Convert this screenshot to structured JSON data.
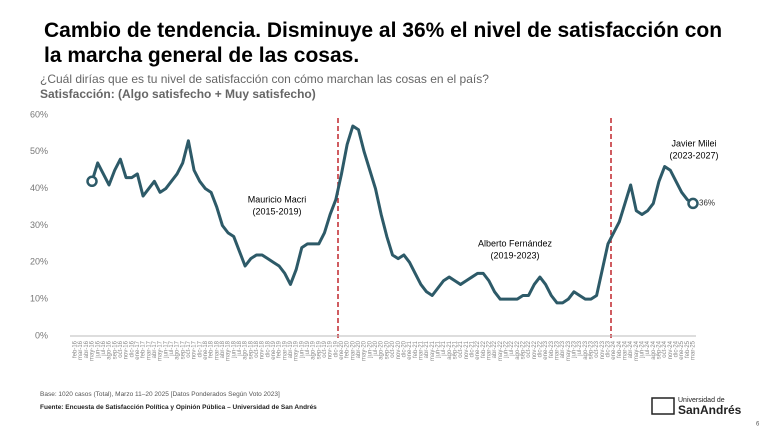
{
  "header": {
    "title": "Cambio de tendencia. Disminuye al 36% el nivel de satisfacción con la marcha general de las cosas.",
    "question": "¿Cuál dirías que es tu nivel de satisfacción con cómo marchan las cosas en el país?",
    "measure": "Satisfacción: (Algo satisfecho + Muy satisfecho)"
  },
  "chart_data": {
    "type": "line",
    "color": "#2d5a68",
    "categories": [
      "feb-16",
      "mar-16",
      "abr-16",
      "may-16",
      "jun-16",
      "jul-16",
      "ago-16",
      "sep-16",
      "oct-16",
      "nov-16",
      "dic-16",
      "ene-17",
      "feb-17",
      "mar-17",
      "abr-17",
      "may-17",
      "jun-17",
      "jul-17",
      "ago-17",
      "sep-17",
      "oct-17",
      "nov-17",
      "dic-17",
      "ene-18",
      "feb-18",
      "mar-18",
      "abr-18",
      "may-18",
      "jun-18",
      "jul-18",
      "ago-18",
      "sep-18",
      "oct-18",
      "nov-18",
      "dic-18",
      "ene-19",
      "feb-19",
      "mar-19",
      "abr-19",
      "may-19",
      "jun-19",
      "jul-19",
      "ago-19",
      "sep-19",
      "oct-19",
      "nov-19",
      "dic-19",
      "ene-20",
      "feb-20",
      "mar-20",
      "abr-20",
      "may-20",
      "jun-20",
      "jul-20",
      "ago-20",
      "sep-20",
      "oct-20",
      "nov-20",
      "dic-20",
      "ene-21",
      "feb-21",
      "mar-21",
      "abr-21",
      "may-21",
      "jun-21",
      "jul-21",
      "ago-21",
      "sep-21",
      "oct-21",
      "nov-21",
      "dic-21",
      "ene-22",
      "feb-22",
      "mar-22",
      "abr-22",
      "may-22",
      "jun-22",
      "jul-22",
      "ago-22",
      "sep-22",
      "oct-22",
      "nov-22",
      "dic-22",
      "ene-23",
      "feb-23",
      "mar-23",
      "abr-23",
      "may-23",
      "jun-23",
      "jul-23",
      "ago-23",
      "sep-23",
      "oct-23",
      "nov-23",
      "dic-23",
      "ene-24",
      "feb-24",
      "mar-24",
      "abr-24",
      "may-24",
      "jun-24",
      "jul-24",
      "ago-24",
      "sep-24",
      "oct-24",
      "nov-24",
      "dic-24",
      "ene-25",
      "feb-25",
      "mar-25"
    ],
    "values": [
      null,
      null,
      null,
      42,
      47,
      44,
      41,
      45,
      48,
      43,
      43,
      44,
      38,
      40,
      42,
      39,
      40,
      42,
      44,
      47,
      53,
      45,
      42,
      40,
      39,
      35,
      30,
      28,
      27,
      23,
      19,
      21,
      22,
      22,
      21,
      20,
      19,
      17,
      14,
      18,
      24,
      25,
      25,
      25,
      28,
      33,
      37,
      44,
      52,
      57,
      56,
      50,
      45,
      40,
      33,
      27,
      22,
      21,
      22,
      20,
      17,
      14,
      12,
      11,
      13,
      15,
      16,
      15,
      14,
      15,
      16,
      17,
      17,
      15,
      12,
      10,
      10,
      10,
      10,
      11,
      11,
      14,
      16,
      14,
      11,
      9,
      9,
      10,
      12,
      11,
      10,
      10,
      11,
      18,
      25,
      28,
      31,
      36,
      41,
      34,
      33,
      34,
      36,
      42,
      46,
      45,
      42,
      39,
      37,
      36
    ],
    "value_labels": [
      null,
      null,
      null,
      null,
      null,
      null,
      null,
      null,
      null,
      null,
      null,
      null,
      null,
      null,
      null,
      null,
      null,
      null,
      null,
      null,
      null,
      null,
      null,
      null,
      null,
      null,
      null,
      null,
      null,
      null,
      null,
      null,
      null,
      null,
      null,
      null,
      null,
      null,
      null,
      null,
      null,
      null,
      null,
      null,
      null,
      null,
      null,
      null,
      null,
      null,
      null,
      null,
      null,
      null,
      null,
      null,
      null,
      null,
      null,
      null,
      null,
      null,
      null,
      null,
      null,
      null,
      null,
      null,
      null,
      null,
      null,
      null,
      null,
      null,
      null,
      null,
      null,
      null,
      null,
      null,
      null,
      null,
      null,
      null,
      null,
      null,
      null,
      null,
      null,
      null,
      null,
      null,
      null,
      null,
      null,
      null,
      null,
      null,
      null,
      null,
      null,
      null,
      null,
      null,
      null,
      null,
      null,
      null,
      null,
      "36%"
    ],
    "ylim": [
      0,
      60
    ],
    "yticks": [
      {
        "value": 0,
        "label": "0%"
      },
      {
        "value": 10,
        "label": "10%"
      },
      {
        "value": 20,
        "label": "20%"
      },
      {
        "value": 30,
        "label": "30%"
      },
      {
        "value": 40,
        "label": "40%"
      },
      {
        "value": 50,
        "label": "50%"
      },
      {
        "value": 60,
        "label": "60%"
      }
    ],
    "grid": false,
    "annotations": [
      {
        "name": "Mauricio Macri",
        "period": "(2015-2019)"
      },
      {
        "name": "Alberto Fernández",
        "period": "(2019-2023)"
      },
      {
        "name": "Javier Milei",
        "period": "(2023-2027)"
      }
    ]
  },
  "footer": {
    "base": "Base: 1020 casos (Total), Marzo 11–20 2025 [Datos Ponderados Según Voto 2023]",
    "source": "Fuente: Encuesta de Satisfacción Política y Opinión Pública – Universidad de San Andrés",
    "logo_top": "Universidad de",
    "logo_bottom": "SanAndrés",
    "page": "6"
  }
}
